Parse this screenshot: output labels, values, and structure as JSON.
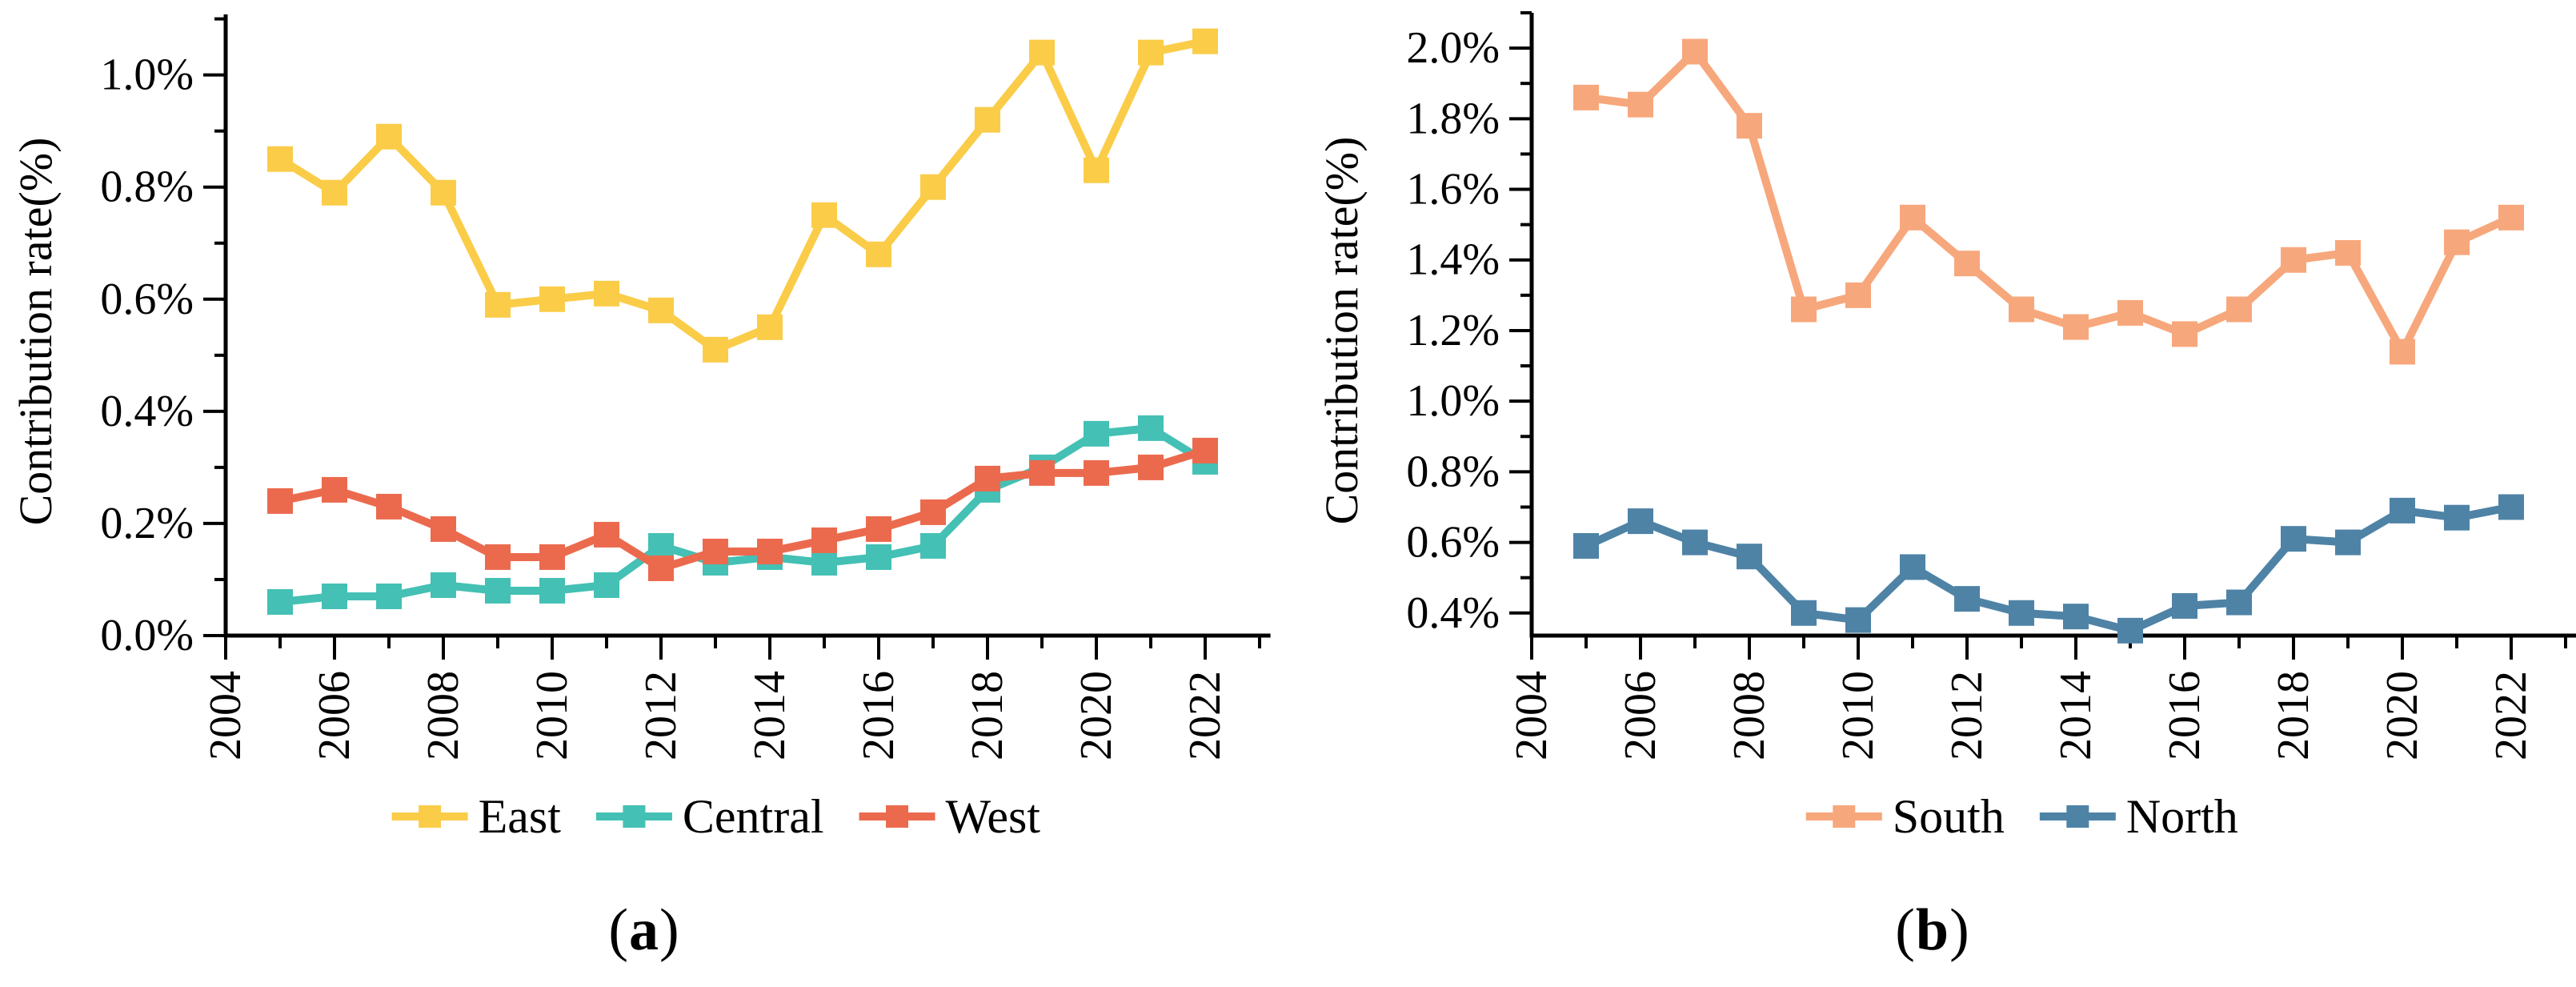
{
  "page": {
    "background_color": "#ffffff",
    "text_color": "#000000"
  },
  "chart_data": [
    {
      "id": "a",
      "type": "line",
      "title": "",
      "xlabel": "",
      "ylabel": "Contribution rate(%)",
      "caption": {
        "open": "(",
        "letter": "a",
        "close": ")"
      },
      "marker": "square",
      "grid": false,
      "legend_position": "bottom",
      "x": [
        2005,
        2006,
        2007,
        2008,
        2009,
        2010,
        2011,
        2012,
        2013,
        2014,
        2015,
        2016,
        2017,
        2018,
        2019,
        2020,
        2021,
        2022
      ],
      "series": [
        {
          "name": "East",
          "color": "#FACC48",
          "values": [
            0.85,
            0.79,
            0.89,
            0.79,
            0.59,
            0.6,
            0.61,
            0.58,
            0.51,
            0.55,
            0.75,
            0.68,
            0.8,
            0.92,
            1.04,
            0.83,
            1.04,
            1.06
          ]
        },
        {
          "name": "Central",
          "color": "#44C0B4",
          "values": [
            0.06,
            0.07,
            0.07,
            0.09,
            0.08,
            0.08,
            0.09,
            0.16,
            0.13,
            0.14,
            0.13,
            0.14,
            0.16,
            0.26,
            0.3,
            0.36,
            0.37,
            0.31
          ]
        },
        {
          "name": "West",
          "color": "#EB6A4E",
          "values": [
            0.24,
            0.26,
            0.23,
            0.19,
            0.14,
            0.14,
            0.18,
            0.12,
            0.15,
            0.15,
            0.17,
            0.19,
            0.22,
            0.28,
            0.29,
            0.29,
            0.3,
            0.33
          ]
        }
      ],
      "x_tick_labels": [
        "2004",
        "2006",
        "2008",
        "2010",
        "2012",
        "2014",
        "2016",
        "2018",
        "2020",
        "2022"
      ],
      "x_minor_ticks": [
        2005,
        2007,
        2009,
        2011,
        2013,
        2015,
        2017,
        2019,
        2021,
        2023
      ],
      "y_ticks": [
        {
          "v": 0.0,
          "label": "0.0%"
        },
        {
          "v": 0.2,
          "label": "0.2%"
        },
        {
          "v": 0.4,
          "label": "0.4%"
        },
        {
          "v": 0.6,
          "label": "0.6%"
        },
        {
          "v": 0.8,
          "label": "0.8%"
        },
        {
          "v": 1.0,
          "label": "1.0%"
        }
      ],
      "y_minor_ticks": [
        0.1,
        0.3,
        0.5,
        0.7,
        0.9,
        1.1
      ],
      "ylim": [
        0.0,
        1.108
      ],
      "xlim": [
        2004,
        2023.2
      ]
    },
    {
      "id": "b",
      "type": "line",
      "title": "",
      "xlabel": "",
      "ylabel": "Contribution rate(%)",
      "caption": {
        "open": "(",
        "letter": "b",
        "close": ")"
      },
      "marker": "square",
      "grid": false,
      "legend_position": "bottom",
      "x": [
        2005,
        2006,
        2007,
        2008,
        2009,
        2010,
        2011,
        2012,
        2013,
        2014,
        2015,
        2016,
        2017,
        2018,
        2019,
        2020,
        2021,
        2022
      ],
      "series": [
        {
          "name": "South",
          "color": "#F7A77C",
          "values": [
            1.86,
            1.84,
            1.99,
            1.78,
            1.26,
            1.3,
            1.52,
            1.39,
            1.26,
            1.21,
            1.25,
            1.19,
            1.26,
            1.4,
            1.42,
            1.14,
            1.45,
            1.52
          ]
        },
        {
          "name": "North",
          "color": "#4E83A6",
          "values": [
            0.59,
            0.66,
            0.6,
            0.56,
            0.4,
            0.38,
            0.53,
            0.44,
            0.4,
            0.39,
            0.35,
            0.42,
            0.43,
            0.61,
            0.6,
            0.69,
            0.67,
            0.7
          ]
        }
      ],
      "x_tick_labels": [
        "2004",
        "2006",
        "2008",
        "2010",
        "2012",
        "2014",
        "2016",
        "2018",
        "2020",
        "2022"
      ],
      "x_minor_ticks": [
        2005,
        2007,
        2009,
        2011,
        2013,
        2015,
        2017,
        2019,
        2021,
        2023
      ],
      "y_ticks": [
        {
          "v": 0.4,
          "label": "0.4%"
        },
        {
          "v": 0.6,
          "label": "0.6%"
        },
        {
          "v": 0.8,
          "label": "0.8%"
        },
        {
          "v": 1.0,
          "label": "1.0%"
        },
        {
          "v": 1.2,
          "label": "1.2%"
        },
        {
          "v": 1.4,
          "label": "1.4%"
        },
        {
          "v": 1.6,
          "label": "1.6%"
        },
        {
          "v": 1.8,
          "label": "1.8%"
        },
        {
          "v": 2.0,
          "label": "2.0%"
        }
      ],
      "y_minor_ticks": [
        0.5,
        0.7,
        0.9,
        1.1,
        1.3,
        1.5,
        1.7,
        1.9,
        2.1
      ],
      "ylim": [
        0.336,
        2.1
      ],
      "xlim": [
        2004,
        2023.2
      ]
    }
  ]
}
